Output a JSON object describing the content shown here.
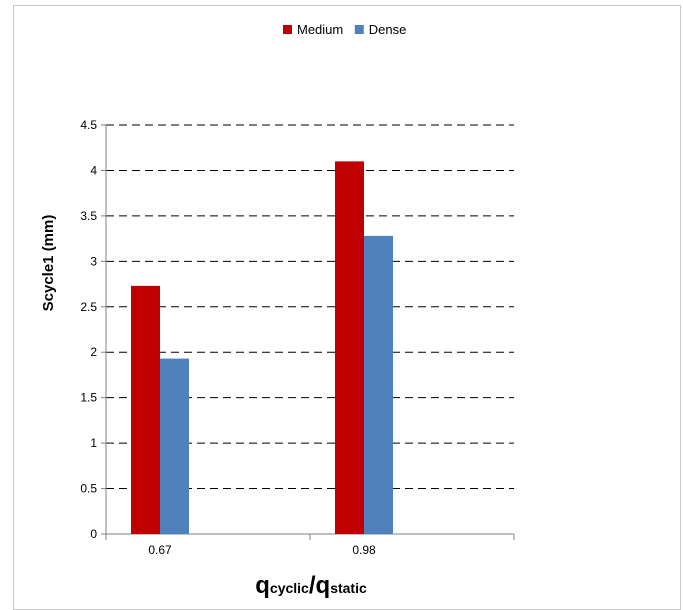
{
  "chart_data": {
    "type": "bar",
    "categories": [
      "0.67",
      "0.98"
    ],
    "series": [
      {
        "name": "Medium",
        "values": [
          2.73,
          4.1
        ],
        "color": "#c00000"
      },
      {
        "name": "Dense",
        "values": [
          1.93,
          3.28
        ],
        "color": "#4f81bd"
      }
    ],
    "ylim": [
      0,
      4.5
    ],
    "yticks": [
      "0",
      "0.5",
      "1",
      "1.5",
      "2",
      "2.5",
      "3",
      "3.5",
      "4",
      "4.5"
    ],
    "ylabel": "Scycle1 (mm)",
    "xlabel": {
      "q1": "q",
      "sub1": "cyclic",
      "slash": "/",
      "q2": "q",
      "sub2": "static"
    },
    "grid": "dashed horizontal",
    "legend_position": "top"
  }
}
